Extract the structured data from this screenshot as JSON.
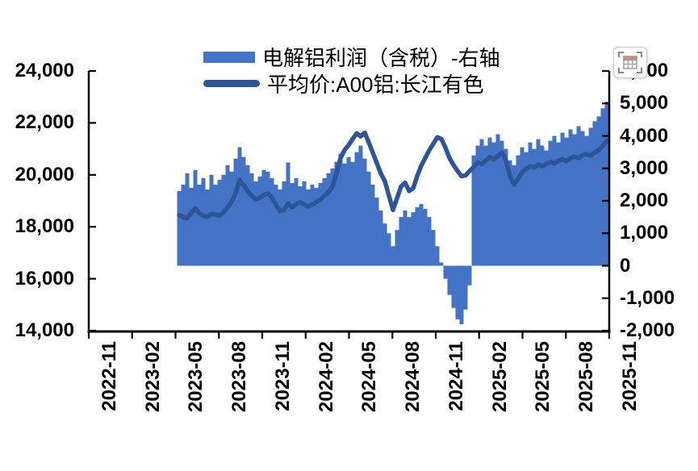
{
  "legend": {
    "items": [
      {
        "label": "电解铝利润（含税）-右轴",
        "type": "bar",
        "color": "#4472C4"
      },
      {
        "label": "平均价:A00铝:长江有色",
        "type": "line",
        "color": "#2E5597"
      }
    ]
  },
  "toolbar": {
    "table_button": "show-data-table"
  },
  "colors": {
    "axis": "#000000",
    "background": "#FFFFFF",
    "bar": "#4472C4",
    "line": "#2E5597"
  },
  "chart_data": {
    "type": "combo",
    "title": "",
    "x_start": "2023-05",
    "x_end": "2025-11",
    "points": 107,
    "grid": false,
    "legend_position": "top",
    "x_ticks": [
      "2022-11",
      "2023-02",
      "2023-05",
      "2023-08",
      "2023-11",
      "2024-02",
      "2024-05",
      "2024-08",
      "2024-11",
      "2025-02",
      "2025-05",
      "2025-08",
      "2025-11"
    ],
    "left_axis": {
      "min": 14000,
      "max": 24000,
      "step": 2000,
      "labels": [
        "24,000",
        "22,000",
        "20,000",
        "18,000",
        "16,000",
        "14,000"
      ]
    },
    "right_axis": {
      "min": -2000,
      "max": 6000,
      "step": 1000,
      "labels": [
        "6,000",
        "5,000",
        "4,000",
        "3,000",
        "2,000",
        "1,000",
        "0",
        "-1,000",
        "-2,000"
      ]
    },
    "series": [
      {
        "name": "电解铝利润（含税）-右轴",
        "type": "bar",
        "axis": "right",
        "color": "#4472C4",
        "values": [
          2300,
          2500,
          2850,
          2400,
          2950,
          2500,
          2700,
          2350,
          2800,
          2500,
          2650,
          2800,
          3100,
          2900,
          3300,
          3650,
          3350,
          3100,
          2850,
          2600,
          2750,
          2950,
          2900,
          2700,
          2500,
          2350,
          2600,
          3180,
          2550,
          2700,
          2450,
          2600,
          2350,
          2500,
          2400,
          2550,
          2700,
          2850,
          3000,
          3200,
          3450,
          3150,
          3350,
          3200,
          3500,
          3700,
          3300,
          2900,
          2500,
          2100,
          1700,
          1300,
          1000,
          600,
          1100,
          1500,
          1700,
          1500,
          1650,
          1800,
          1900,
          1750,
          1500,
          1100,
          600,
          100,
          -400,
          -900,
          -1300,
          -1650,
          -1800,
          -1350,
          -600,
          3400,
          3700,
          3900,
          3700,
          3950,
          3800,
          4050,
          3850,
          3600,
          3250,
          3100,
          3400,
          3650,
          3500,
          3800,
          3600,
          3900,
          3700,
          3550,
          3850,
          4000,
          3800,
          4100,
          3950,
          4200,
          4050,
          4300,
          4150,
          4000,
          4250,
          4450,
          4600,
          4850,
          5050
        ]
      },
      {
        "name": "平均价:A00铝:长江有色",
        "type": "line",
        "axis": "left",
        "color": "#2E5597",
        "values": [
          18450,
          18380,
          18320,
          18550,
          18700,
          18520,
          18420,
          18380,
          18500,
          18470,
          18430,
          18560,
          18750,
          18950,
          19300,
          19800,
          19600,
          19380,
          19180,
          19060,
          19120,
          19230,
          19280,
          19120,
          18850,
          18600,
          18650,
          18900,
          18750,
          18880,
          18950,
          18850,
          18780,
          18850,
          18950,
          19050,
          19200,
          19320,
          19550,
          20050,
          20650,
          20950,
          21150,
          21380,
          21600,
          21480,
          21620,
          21250,
          20850,
          20450,
          20050,
          19750,
          19200,
          18650,
          19100,
          19550,
          19700,
          19380,
          19480,
          19950,
          20350,
          20650,
          20950,
          21200,
          21450,
          21380,
          21050,
          20650,
          20380,
          20150,
          19950,
          19980,
          20150,
          20300,
          20480,
          20420,
          20560,
          20680,
          20600,
          20720,
          20860,
          20550,
          19950,
          19620,
          19850,
          20100,
          20230,
          20330,
          20280,
          20400,
          20330,
          20430,
          20500,
          20440,
          20540,
          20600,
          20530,
          20640,
          20700,
          20640,
          20760,
          20800,
          20740,
          20860,
          20960,
          21120,
          21320
        ]
      }
    ]
  }
}
